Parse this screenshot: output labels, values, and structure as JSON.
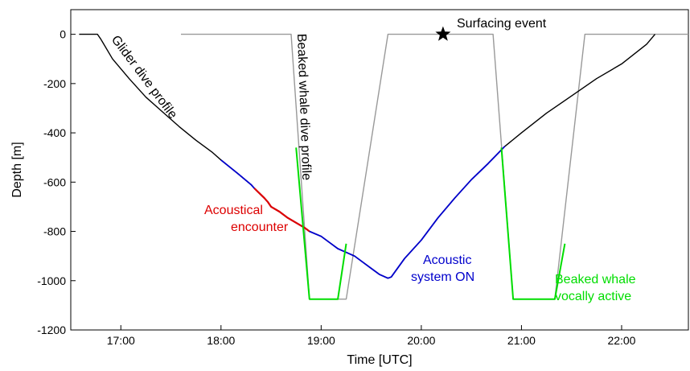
{
  "chart_data": {
    "type": "line",
    "xlabel": "Time [UTC]",
    "ylabel": "Depth [m]",
    "xlim": [
      "16:30",
      "22:40"
    ],
    "ylim": [
      -1200,
      100
    ],
    "x_ticks": [
      "17:00",
      "18:00",
      "19:00",
      "20:00",
      "21:00",
      "22:00"
    ],
    "y_ticks": [
      0,
      -200,
      -400,
      -600,
      -800,
      -1000,
      -1200
    ],
    "grid": false,
    "series": [
      {
        "name": "Glider dive profile",
        "color": "#000000",
        "x": [
          "16:35",
          "16:46",
          "16:48",
          "16:55",
          "17:05",
          "17:15",
          "17:25",
          "17:35",
          "17:45",
          "17:55",
          "18:00",
          "18:10",
          "18:18",
          "18:20",
          "18:26",
          "18:28",
          "18:30",
          "18:35",
          "18:40",
          "18:45",
          "18:50",
          "18:53",
          "19:00",
          "19:05",
          "19:10",
          "19:15",
          "19:20",
          "19:25",
          "19:30",
          "19:35",
          "19:40",
          "19:42",
          "19:50",
          "20:00",
          "20:10",
          "20:20",
          "20:30",
          "20:40",
          "20:50",
          "21:00",
          "21:15",
          "21:30",
          "21:45",
          "22:00",
          "22:15",
          "22:20"
        ],
        "y": [
          0,
          0,
          -20,
          -100,
          -180,
          -255,
          -315,
          -375,
          -430,
          -480,
          -510,
          -565,
          -610,
          -625,
          -665,
          -680,
          -700,
          -720,
          -745,
          -765,
          -785,
          -800,
          -820,
          -845,
          -870,
          -885,
          -900,
          -925,
          -950,
          -975,
          -990,
          -985,
          -910,
          -835,
          -745,
          -665,
          -590,
          -525,
          -455,
          -400,
          -320,
          -250,
          -180,
          -120,
          -40,
          0
        ]
      },
      {
        "name": "Acoustic system ON",
        "color": "#0000cc",
        "x": [
          "18:00",
          "18:10",
          "18:18",
          "18:20",
          "18:26",
          "18:28",
          "18:30",
          "18:35",
          "18:40",
          "18:45",
          "18:50",
          "18:53",
          "19:00",
          "19:05",
          "19:10",
          "19:15",
          "19:20",
          "19:25",
          "19:30",
          "19:35",
          "19:40",
          "19:42",
          "19:50",
          "20:00",
          "20:10",
          "20:20",
          "20:30",
          "20:40",
          "20:50"
        ],
        "y": [
          -510,
          -565,
          -610,
          -625,
          -665,
          -680,
          -700,
          -720,
          -745,
          -765,
          -785,
          -800,
          -820,
          -845,
          -870,
          -885,
          -900,
          -925,
          -950,
          -975,
          -990,
          -985,
          -910,
          -835,
          -745,
          -665,
          -590,
          -525,
          -455
        ]
      },
      {
        "name": "Acoustical encounter",
        "color": "#dd0000",
        "x": [
          "18:20",
          "18:26",
          "18:28",
          "18:30",
          "18:35",
          "18:40",
          "18:45",
          "18:50",
          "18:53"
        ],
        "y": [
          -625,
          -665,
          -680,
          -700,
          -720,
          -745,
          -765,
          -785,
          -800
        ]
      },
      {
        "name": "Beaked whale dive profile",
        "color": "#999999",
        "segments": [
          {
            "x": [
              "17:36",
              "18:42",
              "18:53",
              "19:10",
              "19:15",
              "19:40",
              "20:43",
              "20:55",
              "21:20",
              "21:38",
              "22:40"
            ],
            "y": [
              0,
              0,
              -1075,
              -1075,
              -1075,
              0,
              0,
              -1075,
              -1075,
              0,
              0
            ]
          }
        ]
      },
      {
        "name": "Beaked whale vocally active",
        "color": "#00dd00",
        "segments": [
          {
            "x": [
              "18:45",
              "18:53",
              "19:10",
              "19:15"
            ],
            "y": [
              -460,
              -1075,
              -1075,
              -850
            ]
          },
          {
            "x": [
              "20:48",
              "20:55",
              "21:20",
              "21:26"
            ],
            "y": [
              -460,
              -1075,
              -1075,
              -850
            ]
          }
        ]
      }
    ],
    "surfacing_event": {
      "x": "20:13",
      "y": 0
    },
    "annotations": [
      {
        "text": "Glider dive profile",
        "color": "#000000"
      },
      {
        "text": "Beaked whale dive profile",
        "color": "#000000"
      },
      {
        "text": "Surfacing event",
        "color": "#000000"
      },
      {
        "text": "Acoustical",
        "color": "#dd0000"
      },
      {
        "text": "encounter",
        "color": "#dd0000"
      },
      {
        "text": "Acoustic",
        "color": "#0000cc"
      },
      {
        "text": "system ON",
        "color": "#0000cc"
      },
      {
        "text": "Beaked whale",
        "color": "#00dd00"
      },
      {
        "text": "vocally active",
        "color": "#00dd00"
      }
    ]
  }
}
